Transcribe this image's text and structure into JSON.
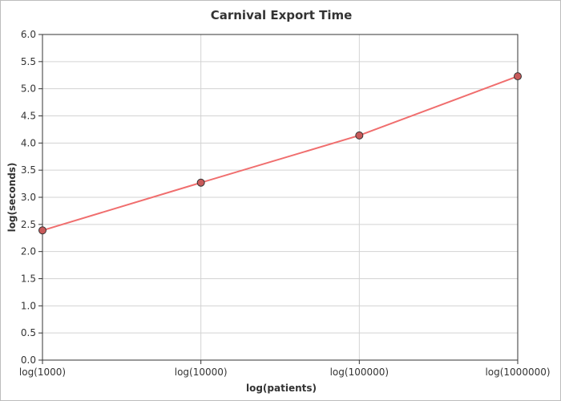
{
  "chart_data": {
    "type": "line",
    "title": "Carnival Export Time",
    "xlabel": "log(patients)",
    "ylabel": "log(seconds)",
    "categories": [
      "log(1000)",
      "log(10000)",
      "log(100000)",
      "log(1000000)"
    ],
    "series": [
      {
        "values": [
          2.39,
          3.27,
          4.14,
          5.23
        ],
        "color": "#f06e6e",
        "marker_color": "#c85a5a"
      }
    ],
    "ylim": [
      0,
      6
    ],
    "yticks": [
      "0.0",
      "0.5",
      "1.0",
      "1.5",
      "2.0",
      "2.5",
      "3.0",
      "3.5",
      "4.0",
      "4.5",
      "5.0",
      "5.5",
      "6.0"
    ],
    "grid": true,
    "legend": "none"
  }
}
